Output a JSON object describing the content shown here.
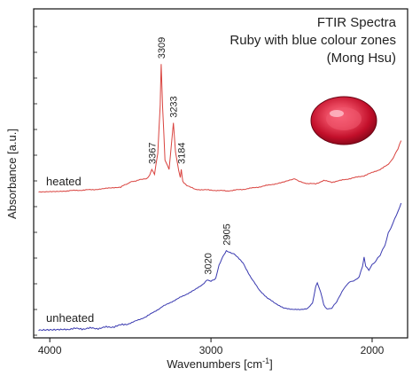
{
  "chart_data": {
    "type": "line",
    "title_lines": [
      "FTIR Spectra",
      "Ruby with blue colour zones",
      "(Mong Hsu)"
    ],
    "xlabel_base": "Wavenumbers [cm",
    "xlabel_sup": "-1",
    "xlabel_end": "]",
    "ylabel": "Absorbance [a.u.]",
    "xlim": [
      4100,
      1780
    ],
    "xticks": [
      {
        "value": 4000,
        "label": "4000"
      },
      {
        "value": 3000,
        "label": "3000"
      },
      {
        "value": 2000,
        "label": "2000"
      }
    ],
    "grid": false,
    "legend": "none",
    "series": [
      {
        "name": "heated",
        "color": "#d9433f",
        "x": [
          4070,
          3900,
          3700,
          3560,
          3500,
          3440,
          3400,
          3380,
          3367,
          3350,
          3330,
          3315,
          3309,
          3300,
          3285,
          3260,
          3245,
          3233,
          3220,
          3200,
          3190,
          3184,
          3175,
          3150,
          3100,
          3000,
          2900,
          2800,
          2700,
          2600,
          2520,
          2480,
          2450,
          2400,
          2350,
          2300,
          2250,
          2200,
          2150,
          2100,
          2050,
          2000,
          1950,
          1900,
          1870,
          1840,
          1820
        ],
        "y": [
          0.02,
          0.03,
          0.05,
          0.08,
          0.14,
          0.17,
          0.18,
          0.23,
          0.3,
          0.24,
          0.5,
          1.1,
          1.62,
          1.08,
          0.42,
          0.3,
          0.62,
          0.88,
          0.52,
          0.28,
          0.2,
          0.3,
          0.15,
          0.1,
          0.05,
          0.04,
          0.03,
          0.05,
          0.08,
          0.12,
          0.16,
          0.18,
          0.15,
          0.12,
          0.12,
          0.16,
          0.14,
          0.16,
          0.18,
          0.2,
          0.22,
          0.26,
          0.3,
          0.36,
          0.44,
          0.56,
          0.66
        ]
      },
      {
        "name": "unheated",
        "color": "#3a3ab0",
        "x": [
          4070,
          3900,
          3700,
          3600,
          3500,
          3400,
          3300,
          3200,
          3100,
          3050,
          3020,
          3000,
          2970,
          2950,
          2920,
          2905,
          2880,
          2850,
          2800,
          2750,
          2700,
          2650,
          2600,
          2550,
          2500,
          2450,
          2400,
          2370,
          2350,
          2340,
          2320,
          2300,
          2280,
          2250,
          2220,
          2180,
          2150,
          2130,
          2100,
          2080,
          2060,
          2050,
          2040,
          2020,
          2000,
          1980,
          1950,
          1920,
          1900,
          1870,
          1850,
          1830,
          1820
        ],
        "y": [
          0.0,
          0.01,
          0.02,
          0.04,
          0.08,
          0.16,
          0.28,
          0.38,
          0.48,
          0.55,
          0.6,
          0.58,
          0.62,
          0.78,
          0.9,
          0.95,
          0.93,
          0.9,
          0.8,
          0.62,
          0.48,
          0.38,
          0.32,
          0.26,
          0.25,
          0.24,
          0.26,
          0.32,
          0.52,
          0.56,
          0.46,
          0.3,
          0.25,
          0.26,
          0.34,
          0.48,
          0.56,
          0.58,
          0.6,
          0.64,
          0.76,
          0.88,
          0.76,
          0.72,
          0.78,
          0.82,
          0.9,
          1.02,
          1.16,
          1.28,
          1.38,
          1.46,
          1.52
        ]
      }
    ],
    "series_labels": [
      "heated",
      "unheated"
    ],
    "annotations": [
      {
        "series": "heated",
        "x": 3367,
        "label": "3367"
      },
      {
        "series": "heated",
        "x": 3309,
        "label": "3309"
      },
      {
        "series": "heated",
        "x": 3233,
        "label": "3233"
      },
      {
        "series": "heated",
        "x": 3184,
        "label": "3184"
      },
      {
        "series": "unheated",
        "x": 3020,
        "label": "3020"
      },
      {
        "series": "unheated",
        "x": 2905,
        "label": "2905"
      }
    ]
  },
  "image": {
    "subject": "ruby-gem",
    "colors": [
      "#c20f2a",
      "#e8455c",
      "#7a0616"
    ]
  }
}
